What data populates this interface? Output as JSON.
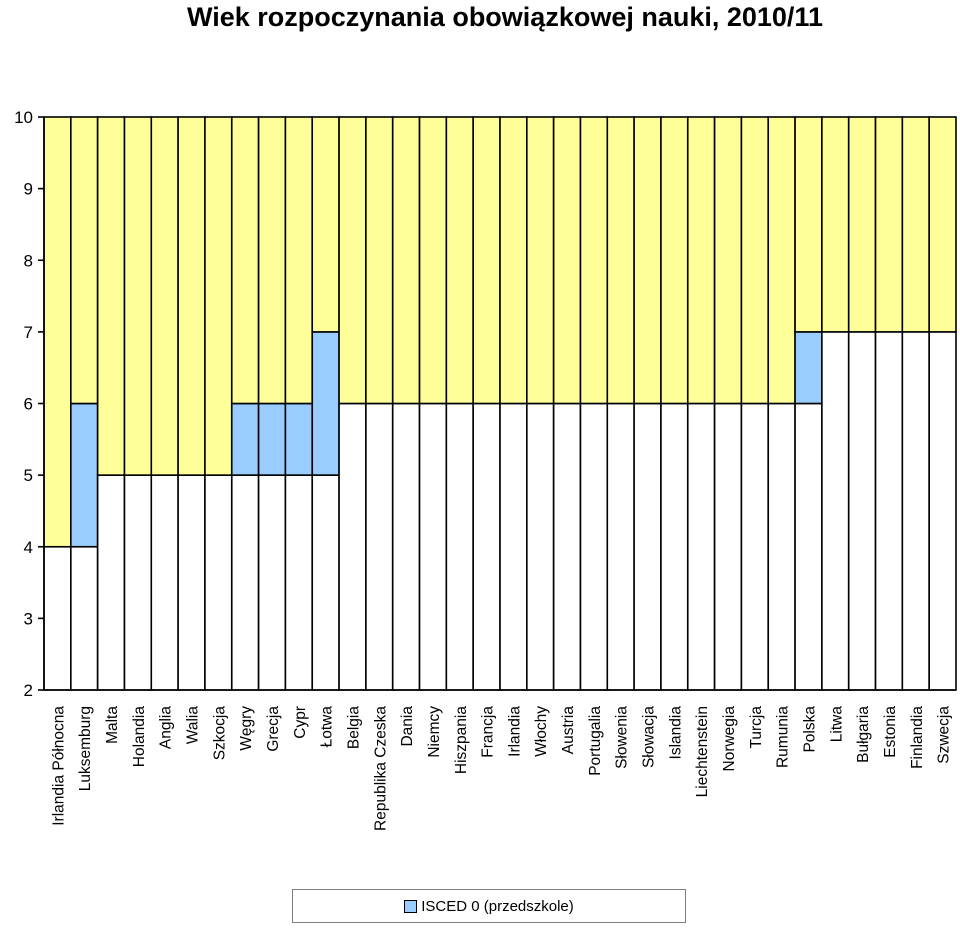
{
  "chart_data": {
    "type": "bar",
    "title": "Wiek rozpoczynania obowiązkowej nauki, 2010/11",
    "ylim": [
      2,
      10
    ],
    "yticks": [
      "2",
      "3",
      "4",
      "5",
      "6",
      "7",
      "8",
      "9",
      "10"
    ],
    "grid": true,
    "legend_position": "bottom",
    "colors": {
      "compulsory_age": "#ffff99",
      "isced0": "#99ccff",
      "base": "#ffffff",
      "edge": "#000000"
    },
    "categories": [
      "Irlandia Północna",
      "Luksemburg",
      "Malta",
      "Holandia",
      "Anglia",
      "Walia",
      "Szkocja",
      "Węgry",
      "Grecja",
      "Cypr",
      "Łotwa",
      "Belgia",
      "Republika Czeska",
      "Dania",
      "Niemcy",
      "Hiszpania",
      "Francja",
      "Irlandia",
      "Włochy",
      "Austria",
      "Portugalia",
      "Słowenia",
      "Słowacja",
      "Islandia",
      "Liechtenstein",
      "Norwegia",
      "Turcja",
      "Rumunia",
      "Polska",
      "Litwa",
      "Bułgaria",
      "Estonia",
      "Finlandia",
      "Szwecja"
    ],
    "series": [
      {
        "name": "ISCED 0 (przedszkole)",
        "start": [
          4,
          4,
          5,
          5,
          5,
          5,
          5,
          5,
          5,
          5,
          5,
          6,
          6,
          6,
          6,
          6,
          6,
          6,
          6,
          6,
          6,
          6,
          6,
          6,
          6,
          6,
          6,
          6,
          6,
          7,
          7,
          7,
          7,
          7
        ],
        "end": [
          4,
          6,
          5,
          5,
          5,
          5,
          5,
          6,
          6,
          6,
          7,
          6,
          6,
          6,
          6,
          6,
          6,
          6,
          6,
          6,
          6,
          6,
          6,
          6,
          6,
          6,
          6,
          6,
          7,
          7,
          7,
          7,
          7,
          7
        ]
      }
    ]
  }
}
